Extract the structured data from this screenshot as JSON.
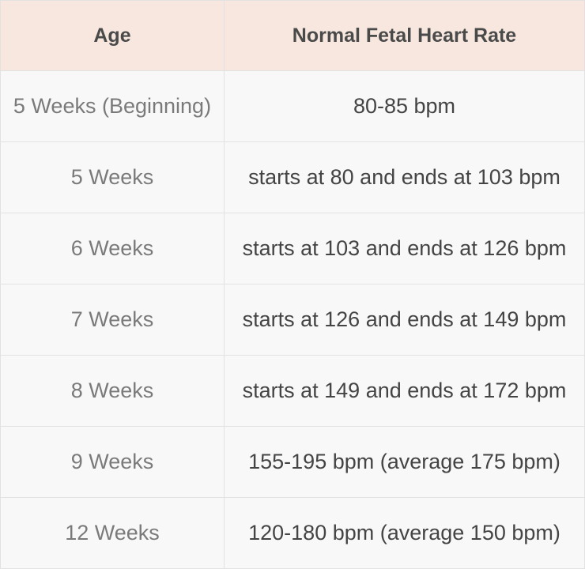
{
  "table": {
    "header": [
      "Age",
      "Normal Fetal Heart Rate"
    ],
    "rows": [
      [
        "5 Weeks (Beginning)",
        "80-85 bpm"
      ],
      [
        "5 Weeks",
        "starts at 80 and ends at 103 bpm"
      ],
      [
        "6 Weeks",
        "starts at 103 and ends at 126 bpm"
      ],
      [
        "7 Weeks",
        "starts at 126 and ends at 149 bpm"
      ],
      [
        "8 Weeks",
        "starts at 149 and ends at 172 bpm"
      ],
      [
        "9 Weeks",
        "155-195 bpm (average 175 bpm)"
      ],
      [
        "12 Weeks",
        "120-180 bpm (average 150 bpm)"
      ]
    ]
  }
}
